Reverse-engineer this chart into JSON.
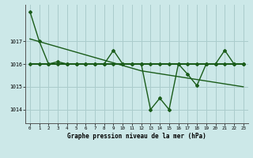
{
  "xlabel": "Graphe pression niveau de la mer (hPa)",
  "bg_color": "#cce8e8",
  "line_color": "#1a5c1a",
  "grid_color": "#aacccc",
  "ylim": [
    1013.4,
    1018.6
  ],
  "xlim": [
    -0.5,
    23.5
  ],
  "yticks": [
    1014,
    1015,
    1016,
    1017
  ],
  "xticks": [
    0,
    1,
    2,
    3,
    4,
    5,
    6,
    7,
    8,
    9,
    10,
    11,
    12,
    13,
    14,
    15,
    16,
    17,
    18,
    19,
    20,
    21,
    22,
    23
  ],
  "series1_x": [
    0,
    1,
    2,
    3,
    4,
    5,
    6,
    7,
    8,
    9,
    10,
    11,
    12,
    13,
    14,
    15,
    16,
    17,
    18,
    19,
    20,
    21,
    22,
    23
  ],
  "series1_y": [
    1018.3,
    1017.0,
    1016.0,
    1016.1,
    1016.0,
    1016.0,
    1016.0,
    1016.0,
    1016.0,
    1016.6,
    1016.0,
    1016.0,
    1016.0,
    1014.0,
    1014.5,
    1014.0,
    1016.0,
    1015.55,
    1015.05,
    1016.0,
    1016.0,
    1016.6,
    1016.0,
    1016.0
  ],
  "series2_x": [
    0,
    12,
    23
  ],
  "series2_y": [
    1017.1,
    1015.7,
    1015.0
  ],
  "series3_x": [
    0,
    1,
    2,
    3,
    4,
    5,
    6,
    7,
    8,
    9,
    10,
    11,
    12,
    13,
    14,
    15,
    16,
    17,
    18,
    19,
    20,
    21,
    22,
    23
  ],
  "series3_y": [
    1016.0,
    1016.0,
    1016.0,
    1016.0,
    1016.0,
    1016.0,
    1016.0,
    1016.0,
    1016.0,
    1016.0,
    1016.0,
    1016.0,
    1016.0,
    1016.0,
    1016.0,
    1016.0,
    1016.0,
    1016.0,
    1016.0,
    1016.0,
    1016.0,
    1016.0,
    1016.0,
    1016.0
  ]
}
